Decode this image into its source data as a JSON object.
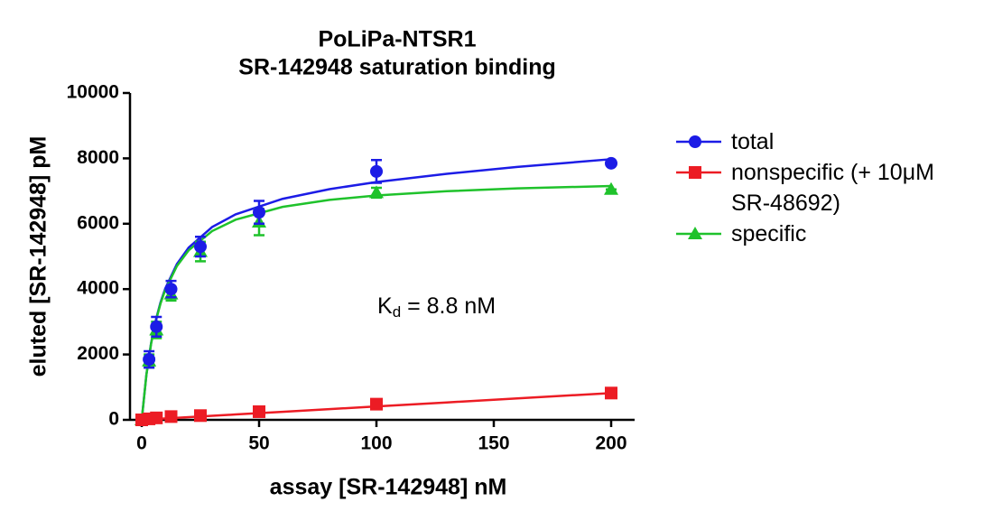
{
  "chart_data": {
    "type": "scatter",
    "title": [
      "PoLiPa-NTSR1",
      "SR-142948 saturation binding"
    ],
    "x_label": "assay [SR-142948] nM",
    "y_label": "eluted [SR-142948] pM",
    "x": [
      0,
      3.125,
      6.25,
      12.5,
      25,
      50,
      100,
      200
    ],
    "xlim": [
      -5,
      210
    ],
    "xticks": [
      0,
      50,
      100,
      150,
      200
    ],
    "ylim": [
      0,
      10000
    ],
    "yticks": [
      0,
      2000,
      4000,
      6000,
      8000,
      10000
    ],
    "fit_x": [
      0,
      2,
      4,
      6,
      8,
      10,
      15,
      20,
      30,
      40,
      60,
      80,
      100,
      130,
      160,
      200
    ],
    "series": [
      {
        "name": "total",
        "color": "#1c1ce6",
        "marker": "circle",
        "values": [
          0,
          1850,
          2850,
          4000,
          5300,
          6350,
          7600,
          7850
        ],
        "errors": [
          0,
          250,
          300,
          250,
          300,
          350,
          350,
          0
        ],
        "fit": [
          0,
          1391,
          2350,
          3053,
          3590,
          4014,
          4770,
          5270,
          5899,
          6287,
          6761,
          7058,
          7276,
          7529,
          7737,
          7975
        ]
      },
      {
        "name": "nonspecific (+ 10μM SR-48692)",
        "color": "#ec1c24",
        "marker": "square",
        "values": [
          0,
          30,
          60,
          100,
          130,
          250,
          480,
          820
        ],
        "fit": [
          0,
          8,
          16,
          25,
          33,
          41,
          62,
          82,
          123,
          164,
          246,
          328,
          410,
          533,
          656,
          820
        ]
      },
      {
        "name": "specific",
        "color": "#1fc22b",
        "marker": "triangle",
        "values": [
          0,
          1800,
          2750,
          3850,
          5150,
          6050,
          6950,
          7050
        ],
        "errors": [
          0,
          200,
          250,
          200,
          300,
          400,
          150,
          0
        ],
        "fit": [
          0,
          1383,
          2334,
          3028,
          3557,
          3973,
          4708,
          5188,
          5776,
          6123,
          6515,
          6730,
          6866,
          6996,
          7081,
          7155
        ]
      }
    ],
    "annotation": {
      "symbol": "K",
      "subscript": "d",
      "text": " = 8.8 nM"
    }
  }
}
